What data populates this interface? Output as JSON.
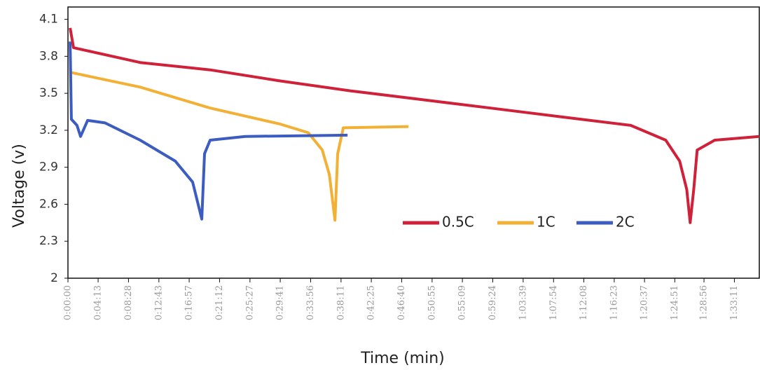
{
  "chart_data": {
    "type": "line",
    "x_label": "Time (min)",
    "y_label": "Voltage (v)",
    "xlim": [
      0,
      5800
    ],
    "ylim": [
      2,
      4.2
    ],
    "yticks": [
      2,
      2.3,
      2.6,
      2.9,
      3.2,
      3.5,
      3.8,
      4.1
    ],
    "xticks": [
      {
        "value": 0,
        "label": "0:00:00"
      },
      {
        "value": 253,
        "label": "0:04:13"
      },
      {
        "value": 508,
        "label": "0:08:28"
      },
      {
        "value": 763,
        "label": "0:12:43"
      },
      {
        "value": 1017,
        "label": "0:16:57"
      },
      {
        "value": 1272,
        "label": "0:21:12"
      },
      {
        "value": 1527,
        "label": "0:25:27"
      },
      {
        "value": 1781,
        "label": "0:29:41"
      },
      {
        "value": 2036,
        "label": "0:33:56"
      },
      {
        "value": 2291,
        "label": "0:38:11"
      },
      {
        "value": 2545,
        "label": "0:42:25"
      },
      {
        "value": 2800,
        "label": "0:46:40"
      },
      {
        "value": 3055,
        "label": "0:50:55"
      },
      {
        "value": 3309,
        "label": "0:55:09"
      },
      {
        "value": 3564,
        "label": "0:59:24"
      },
      {
        "value": 3819,
        "label": "1:03:39"
      },
      {
        "value": 4074,
        "label": "1:07:54"
      },
      {
        "value": 4328,
        "label": "1:12:08"
      },
      {
        "value": 4583,
        "label": "1:16:23"
      },
      {
        "value": 4837,
        "label": "1:20:37"
      },
      {
        "value": 5091,
        "label": "1:24:51"
      },
      {
        "value": 5336,
        "label": "1:28:56"
      },
      {
        "value": 5591,
        "label": "1:33:11"
      }
    ],
    "series": [
      {
        "name": "0.5C",
        "color": "#d0213a",
        "x": [
          18,
          47,
          606,
          1193,
          1781,
          2369,
          2957,
          3545,
          4133,
          4721,
          5015,
          5132,
          5191,
          5220,
          5250,
          5279,
          5426,
          5800
        ],
        "values": [
          4.03,
          3.87,
          3.75,
          3.69,
          3.6,
          3.52,
          3.45,
          3.38,
          3.31,
          3.24,
          3.12,
          2.95,
          2.72,
          2.45,
          2.72,
          3.04,
          3.12,
          3.15
        ]
      },
      {
        "name": "1C",
        "color": "#f2b035",
        "x": [
          18,
          606,
          1193,
          1781,
          2016,
          2134,
          2193,
          2240,
          2263,
          2310,
          2857
        ],
        "values": [
          3.67,
          3.55,
          3.38,
          3.25,
          3.18,
          3.04,
          2.84,
          2.47,
          3.01,
          3.22,
          3.23
        ]
      },
      {
        "name": "2C",
        "color": "#3c5cc0",
        "x": [
          18,
          29,
          76,
          106,
          165,
          312,
          606,
          900,
          1046,
          1123,
          1146,
          1193,
          1487,
          2346
        ],
        "values": [
          3.92,
          3.29,
          3.24,
          3.15,
          3.28,
          3.26,
          3.12,
          2.95,
          2.78,
          2.48,
          3.01,
          3.12,
          3.15,
          3.16
        ]
      }
    ]
  }
}
